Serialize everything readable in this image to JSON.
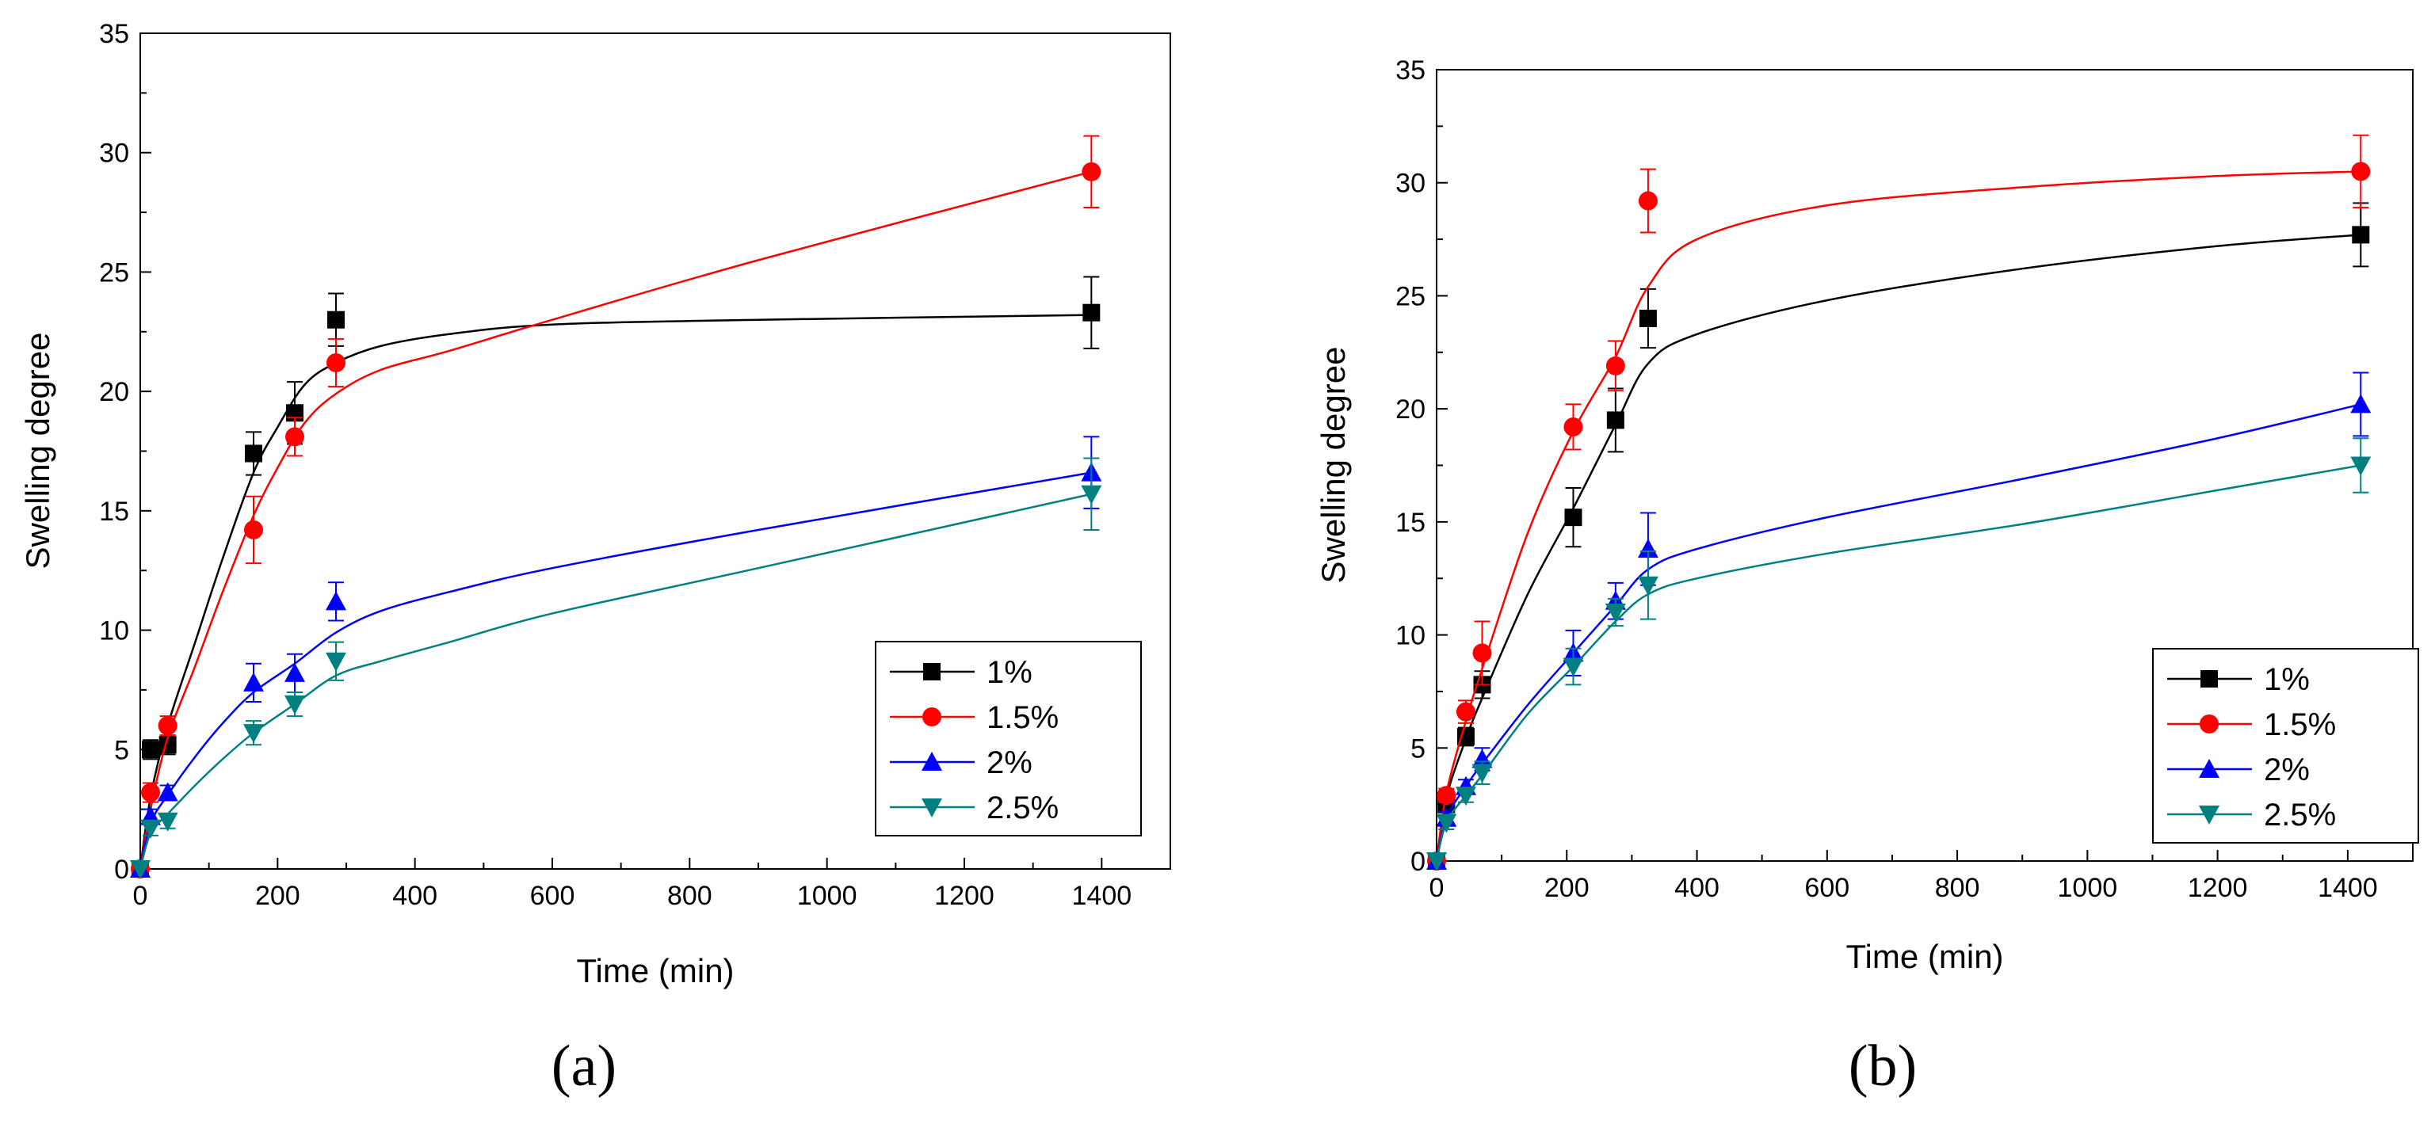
{
  "chart_data": [
    {
      "type": "line",
      "panel_label": "(a)",
      "title": "",
      "xlabel": "Time (min)",
      "ylabel": "Swelling degree",
      "xlim": [
        0,
        1500
      ],
      "ylim": [
        0,
        35
      ],
      "xticks": [
        0,
        200,
        400,
        600,
        800,
        1000,
        1200,
        1400
      ],
      "yticks": [
        0,
        5,
        10,
        15,
        20,
        25,
        30,
        35
      ],
      "grid": false,
      "legend_position": "bottom-right",
      "series": [
        {
          "name": "1%",
          "color": "#000000",
          "marker": "square",
          "x": [
            0,
            15,
            40,
            165,
            225,
            285,
            1385
          ],
          "y": [
            0,
            5.0,
            5.2,
            17.4,
            19.1,
            23.0,
            23.3
          ],
          "err": [
            0,
            0.4,
            0.4,
            0.9,
            1.3,
            1.1,
            1.5
          ],
          "fit": [
            [
              0,
              0
            ],
            [
              15,
              3.0
            ],
            [
              40,
              6.0
            ],
            [
              80,
              9.5
            ],
            [
              120,
              13.0
            ],
            [
              165,
              16.6
            ],
            [
              200,
              18.5
            ],
            [
              240,
              20.3
            ],
            [
              285,
              21.2
            ],
            [
              350,
              21.9
            ],
            [
              450,
              22.4
            ],
            [
              600,
              22.8
            ],
            [
              900,
              23.0
            ],
            [
              1385,
              23.2
            ]
          ]
        },
        {
          "name": "1.5%",
          "color": "#ff0000",
          "marker": "circle",
          "x": [
            0,
            15,
            40,
            165,
            225,
            285,
            1385
          ],
          "y": [
            0,
            3.2,
            6.0,
            14.2,
            18.1,
            21.2,
            29.2
          ],
          "err": [
            0,
            0.4,
            0.4,
            1.4,
            0.8,
            1.0,
            1.5
          ],
          "fit": [
            [
              0,
              0
            ],
            [
              15,
              2.5
            ],
            [
              40,
              5.5
            ],
            [
              80,
              8.5
            ],
            [
              120,
              11.6
            ],
            [
              165,
              14.8
            ],
            [
              200,
              16.8
            ],
            [
              240,
              18.7
            ],
            [
              285,
              19.9
            ],
            [
              350,
              20.9
            ],
            [
              450,
              21.7
            ],
            [
              600,
              23.0
            ],
            [
              900,
              25.5
            ],
            [
              1385,
              29.2
            ]
          ]
        },
        {
          "name": "2%",
          "color": "#0000ff",
          "marker": "triangle-up",
          "x": [
            0,
            15,
            40,
            165,
            225,
            285,
            1385
          ],
          "y": [
            0,
            2.2,
            3.2,
            7.8,
            8.2,
            11.2,
            16.6
          ],
          "err": [
            0,
            0.3,
            0.3,
            0.8,
            0.8,
            0.8,
            1.5
          ],
          "fit": [
            [
              0,
              0
            ],
            [
              15,
              1.9
            ],
            [
              40,
              3.1
            ],
            [
              80,
              4.7
            ],
            [
              120,
              6.1
            ],
            [
              165,
              7.4
            ],
            [
              225,
              8.6
            ],
            [
              285,
              9.9
            ],
            [
              350,
              10.8
            ],
            [
              450,
              11.6
            ],
            [
              600,
              12.6
            ],
            [
              900,
              14.2
            ],
            [
              1385,
              16.6
            ]
          ]
        },
        {
          "name": "2.5%",
          "color": "#008080",
          "marker": "triangle-down",
          "x": [
            0,
            15,
            40,
            165,
            225,
            285,
            1385
          ],
          "y": [
            0,
            1.7,
            2.0,
            5.7,
            6.9,
            8.7,
            15.7
          ],
          "err": [
            0,
            0.3,
            0.3,
            0.5,
            0.5,
            0.8,
            1.5
          ],
          "fit": [
            [
              0,
              0
            ],
            [
              15,
              1.5
            ],
            [
              40,
              2.3
            ],
            [
              80,
              3.5
            ],
            [
              120,
              4.6
            ],
            [
              165,
              5.7
            ],
            [
              225,
              6.9
            ],
            [
              285,
              8.1
            ],
            [
              350,
              8.7
            ],
            [
              450,
              9.5
            ],
            [
              600,
              10.7
            ],
            [
              900,
              12.6
            ],
            [
              1385,
              15.7
            ]
          ]
        }
      ]
    },
    {
      "type": "line",
      "panel_label": "(b)",
      "title": "",
      "xlabel": "Time (min)",
      "ylabel": "Swelling degree",
      "xlim": [
        0,
        1500
      ],
      "ylim": [
        0,
        35
      ],
      "xticks": [
        0,
        200,
        400,
        600,
        800,
        1000,
        1200,
        1400
      ],
      "yticks": [
        0,
        5,
        10,
        15,
        20,
        25,
        30,
        35
      ],
      "grid": false,
      "legend_position": "bottom-right",
      "series": [
        {
          "name": "1%",
          "color": "#000000",
          "marker": "square",
          "x": [
            0,
            15,
            45,
            70,
            210,
            275,
            325,
            1420
          ],
          "y": [
            0,
            2.5,
            5.5,
            7.8,
            15.2,
            19.5,
            24.0,
            27.7
          ],
          "err": [
            0,
            0.3,
            0.4,
            0.6,
            1.3,
            1.4,
            1.3,
            1.4
          ],
          "fit": [
            [
              0,
              0
            ],
            [
              15,
              2.8
            ],
            [
              45,
              5.4
            ],
            [
              70,
              7.2
            ],
            [
              140,
              11.8
            ],
            [
              210,
              15.6
            ],
            [
              275,
              19.3
            ],
            [
              325,
              22.0
            ],
            [
              400,
              23.3
            ],
            [
              600,
              24.8
            ],
            [
              900,
              26.2
            ],
            [
              1200,
              27.2
            ],
            [
              1420,
              27.7
            ]
          ]
        },
        {
          "name": "1.5%",
          "color": "#ff0000",
          "marker": "circle",
          "x": [
            0,
            15,
            45,
            70,
            210,
            275,
            325,
            1420
          ],
          "y": [
            0,
            2.9,
            6.6,
            9.2,
            19.2,
            21.9,
            29.2,
            30.5
          ],
          "err": [
            0,
            0.3,
            0.5,
            1.4,
            1.0,
            1.1,
            1.4,
            1.6
          ],
          "fit": [
            [
              0,
              0
            ],
            [
              15,
              3.0
            ],
            [
              45,
              6.2
            ],
            [
              70,
              8.5
            ],
            [
              140,
              14.5
            ],
            [
              210,
              19.0
            ],
            [
              275,
              22.3
            ],
            [
              325,
              25.4
            ],
            [
              400,
              27.5
            ],
            [
              600,
              29.0
            ],
            [
              900,
              29.8
            ],
            [
              1200,
              30.3
            ],
            [
              1420,
              30.5
            ]
          ]
        },
        {
          "name": "2%",
          "color": "#0000ff",
          "marker": "triangle-up",
          "x": [
            0,
            15,
            45,
            70,
            210,
            275,
            325,
            1420
          ],
          "y": [
            0,
            1.9,
            3.3,
            4.5,
            9.2,
            11.5,
            13.8,
            20.2
          ],
          "err": [
            0,
            0.3,
            0.3,
            0.5,
            1.0,
            0.8,
            1.6,
            1.4
          ],
          "fit": [
            [
              0,
              0
            ],
            [
              15,
              1.9
            ],
            [
              45,
              3.3
            ],
            [
              70,
              4.3
            ],
            [
              140,
              6.9
            ],
            [
              210,
              9.2
            ],
            [
              275,
              11.3
            ],
            [
              325,
              12.9
            ],
            [
              400,
              13.8
            ],
            [
              600,
              15.2
            ],
            [
              900,
              16.9
            ],
            [
              1200,
              18.7
            ],
            [
              1420,
              20.2
            ]
          ]
        },
        {
          "name": "2.5%",
          "color": "#008080",
          "marker": "triangle-down",
          "x": [
            0,
            15,
            45,
            70,
            210,
            275,
            325,
            1420
          ],
          "y": [
            0,
            1.7,
            2.9,
            3.9,
            8.6,
            11.0,
            12.2,
            17.5
          ],
          "err": [
            0,
            0.3,
            0.3,
            0.5,
            0.8,
            0.6,
            1.5,
            1.2
          ],
          "fit": [
            [
              0,
              0
            ],
            [
              15,
              1.7
            ],
            [
              45,
              2.9
            ],
            [
              70,
              3.8
            ],
            [
              140,
              6.5
            ],
            [
              210,
              8.6
            ],
            [
              275,
              10.6
            ],
            [
              325,
              11.8
            ],
            [
              400,
              12.5
            ],
            [
              600,
              13.6
            ],
            [
              900,
              14.9
            ],
            [
              1200,
              16.4
            ],
            [
              1420,
              17.5
            ]
          ]
        }
      ]
    }
  ]
}
